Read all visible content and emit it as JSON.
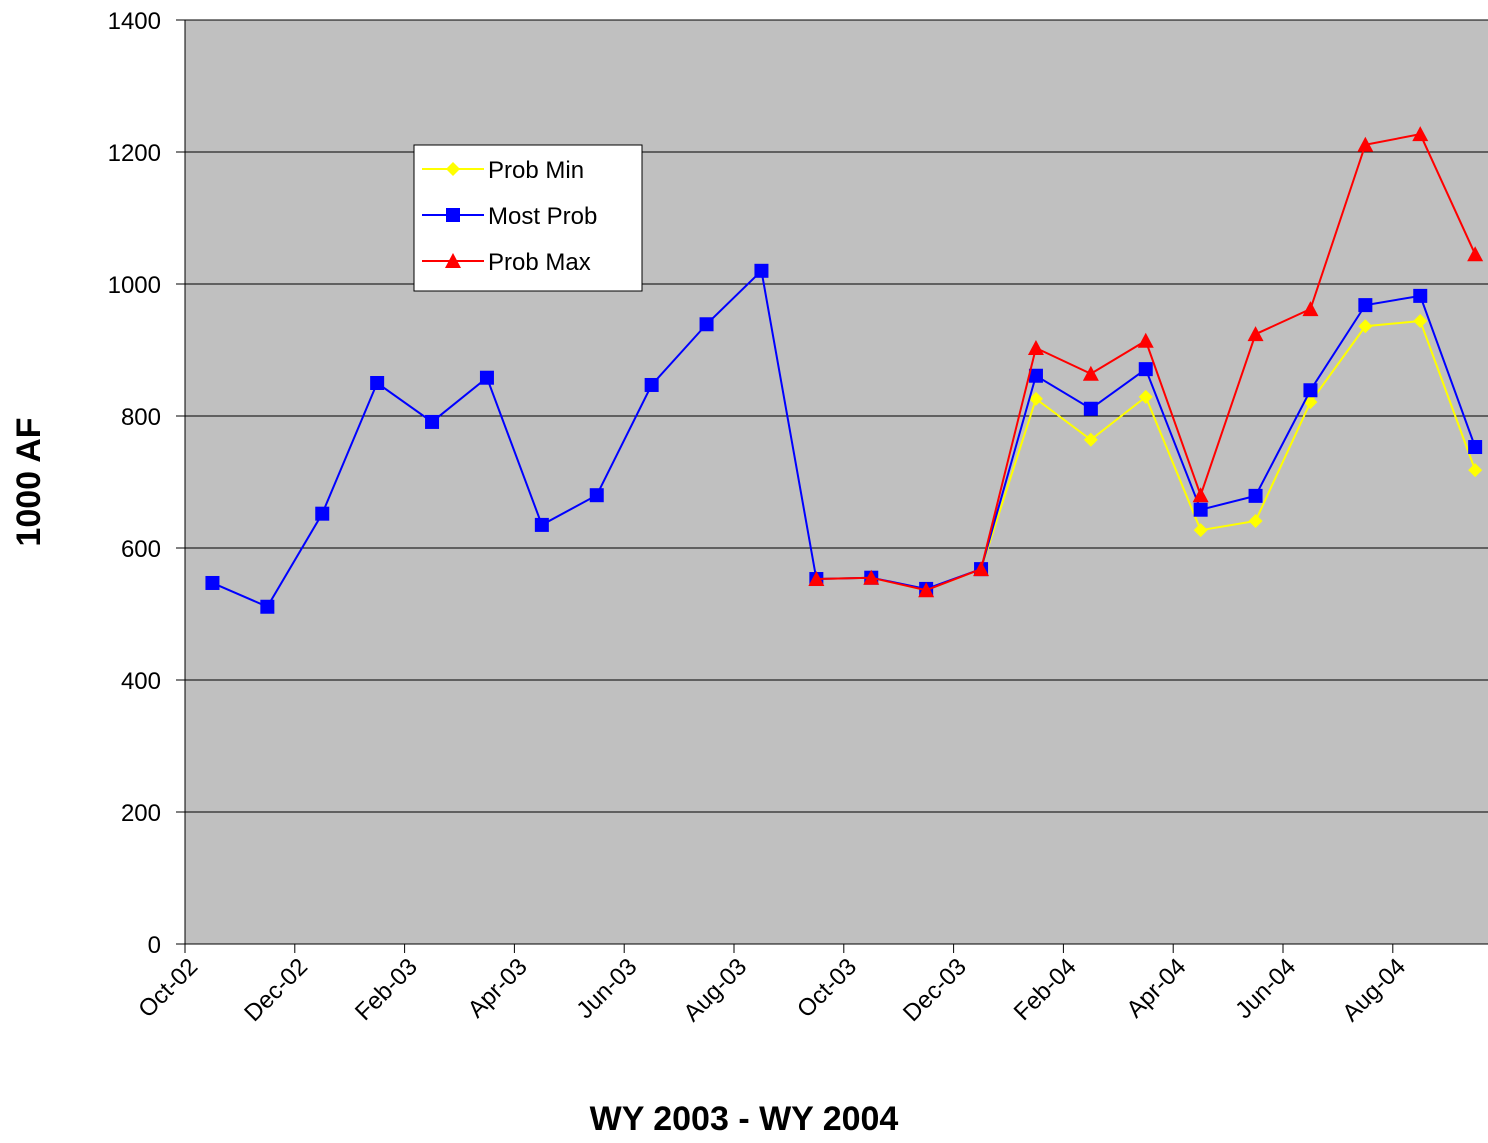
{
  "chart_data": {
    "type": "line",
    "categories": [
      "Oct-02",
      null,
      "Dec-02",
      null,
      "Feb-03",
      null,
      "Apr-03",
      null,
      "Jun-03",
      null,
      "Aug-03",
      null,
      "Oct-03",
      null,
      "Dec-03",
      null,
      "Feb-04",
      null,
      "Apr-04",
      null,
      "Jun-04",
      null,
      "Aug-04",
      null
    ],
    "series": [
      {
        "name": "Prob Min",
        "color": "#ffff00",
        "marker": "diamond",
        "values": [
          null,
          null,
          null,
          null,
          null,
          null,
          null,
          null,
          null,
          null,
          null,
          553,
          555,
          536,
          568,
          826,
          764,
          829,
          627,
          641,
          821,
          936,
          944,
          718
        ]
      },
      {
        "name": "Most Prob",
        "color": "#0000ff",
        "marker": "square",
        "values": [
          547,
          511,
          652,
          850,
          791,
          858,
          635,
          680,
          847,
          939,
          1020,
          553,
          555,
          538,
          568,
          861,
          811,
          871,
          658,
          679,
          839,
          968,
          982,
          753
        ]
      },
      {
        "name": "Prob Max",
        "color": "#ff0000",
        "marker": "triangle",
        "values": [
          null,
          null,
          null,
          null,
          null,
          null,
          null,
          null,
          null,
          null,
          null,
          553,
          555,
          536,
          568,
          903,
          864,
          914,
          680,
          924,
          962,
          1211,
          1227,
          1045
        ]
      }
    ],
    "ylim": [
      0,
      1400
    ],
    "yticks": [
      0,
      200,
      400,
      600,
      800,
      1000,
      1200,
      1400
    ],
    "grid": true,
    "y_label": "1000 AF",
    "x_label": "WY 2003 - WY 2004",
    "legend": "upper-left"
  }
}
